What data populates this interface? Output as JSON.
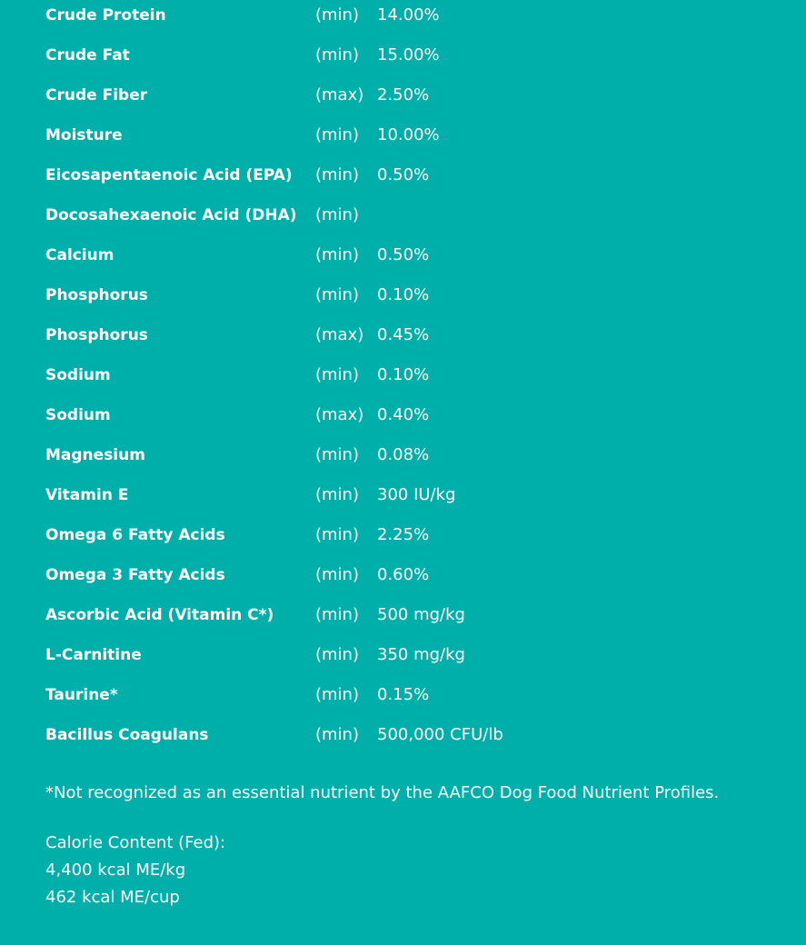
{
  "table": {
    "rows": [
      [
        "Crude Protein",
        "(min)",
        "14.00%"
      ],
      [
        "Crude Fat",
        "(min)",
        "15.00%"
      ],
      [
        "Crude Fiber",
        "(max)",
        "2.50%"
      ],
      [
        "Moisture",
        "(min)",
        "10.00%"
      ],
      [
        "Eicosapentaenoic Acid (EPA)",
        "(min)",
        "0.50%"
      ],
      [
        "Docosahexaenoic Acid (DHA)",
        "(min)"
      ],
      [
        "Calcium",
        "(min)",
        "0.50%"
      ],
      [
        "Phosphorus",
        "(min)",
        "0.10%"
      ],
      [
        "Phosphorus",
        "(max)",
        "0.45%"
      ],
      [
        "Sodium",
        "(min)",
        "0.10%"
      ],
      [
        "Sodium",
        "(max)",
        "0.40%"
      ],
      [
        "Magnesium",
        "(min)",
        "0.08%"
      ],
      [
        "Vitamin E",
        "(min)",
        "300 IU/kg"
      ],
      [
        "Omega 6 Fatty Acids",
        "(min)",
        "2.25%"
      ],
      [
        "Omega 3 Fatty Acids",
        "(min)",
        "0.60%"
      ],
      [
        "Ascorbic Acid (Vitamin C*)",
        "(min)",
        "500 mg/kg"
      ],
      [
        "L-Carnitine",
        "(min)",
        "350 mg/kg"
      ],
      [
        "Taurine*",
        "(min)",
        "0.15%"
      ],
      [
        "Bacillus Coagulans",
        "(min)",
        "500,000 CFU/lb"
      ]
    ]
  },
  "footnote": "*Not recognized as an essential nutrient by the AAFCO Dog Food Nutrient Profiles.",
  "calorie": {
    "heading": "Calorie Content (Fed):",
    "lines": [
      "4,400 kcal ME/kg",
      "462 kcal ME/cup"
    ]
  }
}
